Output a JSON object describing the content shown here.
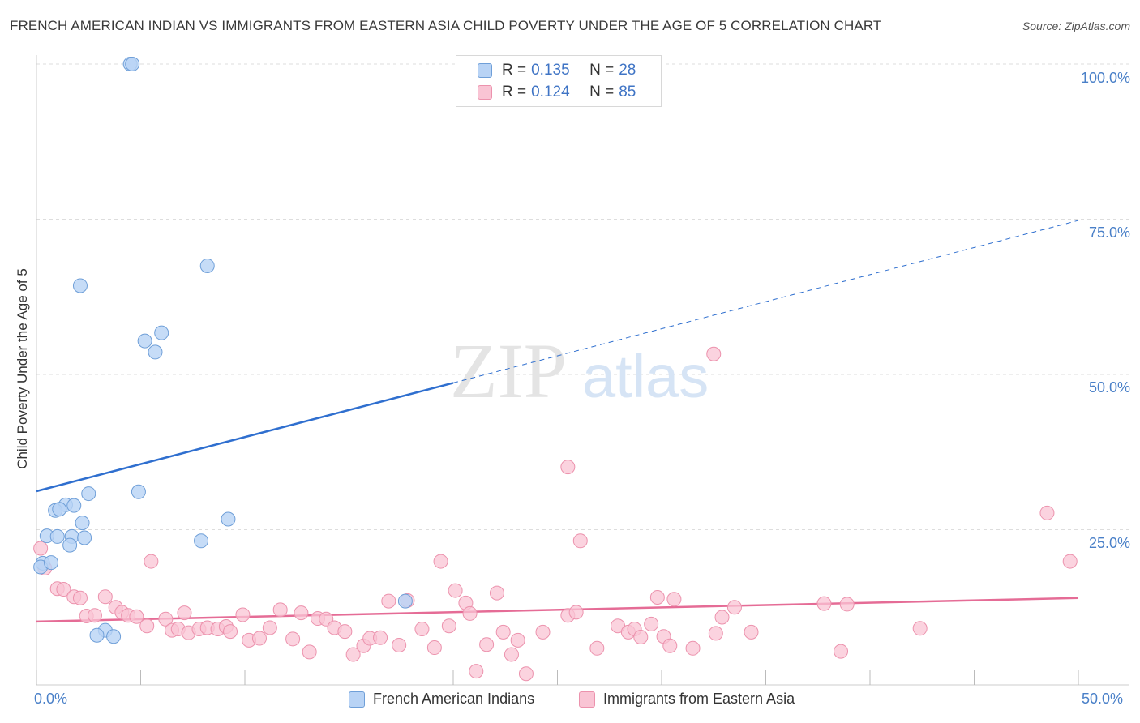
{
  "title": "FRENCH AMERICAN INDIAN VS IMMIGRANTS FROM EASTERN ASIA CHILD POVERTY UNDER THE AGE OF 5 CORRELATION CHART",
  "source": "Source: ZipAtlas.com",
  "watermark": {
    "zip": "ZIP",
    "atlas": "atlas"
  },
  "legend": [
    {
      "r_label": "R =",
      "r_value": "0.135",
      "n_label": "N =",
      "n_value": "28"
    },
    {
      "r_label": "R =",
      "r_value": "0.124",
      "n_label": "N =",
      "n_value": "85"
    }
  ],
  "colors": {
    "series1_fill": "#b8d3f5",
    "series1_stroke": "#6f9fd8",
    "series1_line": "#2f6fcf",
    "series2_fill": "#f9c4d4",
    "series2_stroke": "#ec92ad",
    "series2_line": "#e56c96",
    "tick_text": "#4a80c8",
    "grid": "#dddddd"
  },
  "chart_data": {
    "type": "scatter",
    "title": "FRENCH AMERICAN INDIAN VS IMMIGRANTS FROM EASTERN ASIA CHILD POVERTY UNDER THE AGE OF 5 CORRELATION CHART",
    "xlabel": "",
    "ylabel": "Child Poverty Under the Age of 5",
    "xlim": [
      0,
      50
    ],
    "ylim": [
      0,
      100
    ],
    "x_tick_labels": [
      "0.0%",
      "50.0%"
    ],
    "y_tick_values": [
      25,
      50,
      75,
      100
    ],
    "y_tick_labels": [
      "25.0%",
      "50.0%",
      "75.0%",
      "100.0%"
    ],
    "series": [
      {
        "name": "French American Indians",
        "points": [
          [
            4.5,
            100
          ],
          [
            4.6,
            100
          ],
          [
            8.2,
            67.5
          ],
          [
            2.1,
            64.3
          ],
          [
            6.0,
            56.7
          ],
          [
            5.2,
            55.4
          ],
          [
            5.7,
            53.6
          ],
          [
            2.5,
            30.8
          ],
          [
            4.9,
            31.1
          ],
          [
            1.4,
            29.0
          ],
          [
            1.8,
            28.9
          ],
          [
            0.9,
            28.1
          ],
          [
            1.1,
            28.3
          ],
          [
            9.2,
            26.7
          ],
          [
            2.2,
            26.1
          ],
          [
            0.5,
            24.0
          ],
          [
            1.0,
            23.9
          ],
          [
            1.7,
            23.9
          ],
          [
            2.3,
            23.7
          ],
          [
            1.6,
            22.5
          ],
          [
            7.9,
            23.2
          ],
          [
            0.3,
            19.6
          ],
          [
            0.2,
            19.0
          ],
          [
            0.7,
            19.7
          ],
          [
            3.3,
            8.8
          ],
          [
            2.9,
            8.0
          ],
          [
            3.7,
            7.8
          ],
          [
            17.7,
            13.5
          ]
        ],
        "trend": {
          "x": [
            0,
            50
          ],
          "y": [
            31.2,
            74.8
          ],
          "solid_until_x": 20
        }
      },
      {
        "name": "Immigrants from Eastern Asia",
        "points": [
          [
            0.2,
            22.0
          ],
          [
            0.4,
            18.8
          ],
          [
            1.0,
            15.5
          ],
          [
            1.3,
            15.4
          ],
          [
            1.8,
            14.2
          ],
          [
            2.1,
            14.0
          ],
          [
            2.4,
            11.1
          ],
          [
            2.8,
            11.2
          ],
          [
            3.3,
            14.2
          ],
          [
            3.8,
            12.5
          ],
          [
            4.1,
            11.7
          ],
          [
            4.4,
            11.2
          ],
          [
            4.8,
            11.0
          ],
          [
            5.3,
            9.5
          ],
          [
            5.5,
            19.9
          ],
          [
            6.2,
            10.6
          ],
          [
            6.5,
            8.8
          ],
          [
            6.8,
            9.0
          ],
          [
            7.1,
            11.6
          ],
          [
            7.3,
            8.4
          ],
          [
            7.8,
            9.0
          ],
          [
            8.2,
            9.2
          ],
          [
            8.7,
            9.0
          ],
          [
            9.1,
            9.4
          ],
          [
            9.3,
            8.6
          ],
          [
            9.9,
            11.3
          ],
          [
            10.2,
            7.2
          ],
          [
            10.7,
            7.5
          ],
          [
            11.2,
            9.2
          ],
          [
            11.7,
            12.1
          ],
          [
            12.3,
            7.4
          ],
          [
            12.7,
            11.6
          ],
          [
            13.1,
            5.3
          ],
          [
            13.5,
            10.7
          ],
          [
            13.9,
            10.6
          ],
          [
            14.3,
            9.2
          ],
          [
            14.8,
            8.6
          ],
          [
            15.2,
            4.9
          ],
          [
            15.7,
            6.3
          ],
          [
            16.0,
            7.5
          ],
          [
            16.5,
            7.6
          ],
          [
            16.9,
            13.5
          ],
          [
            17.4,
            6.4
          ],
          [
            17.8,
            13.6
          ],
          [
            18.5,
            9.0
          ],
          [
            19.1,
            6.0
          ],
          [
            19.4,
            19.9
          ],
          [
            19.8,
            9.5
          ],
          [
            20.1,
            15.2
          ],
          [
            20.6,
            13.2
          ],
          [
            20.8,
            11.5
          ],
          [
            21.1,
            2.2
          ],
          [
            21.6,
            6.5
          ],
          [
            22.1,
            14.8
          ],
          [
            22.4,
            8.5
          ],
          [
            22.8,
            4.9
          ],
          [
            23.1,
            7.2
          ],
          [
            23.5,
            1.8
          ],
          [
            24.3,
            8.5
          ],
          [
            25.5,
            11.2
          ],
          [
            25.9,
            11.7
          ],
          [
            26.1,
            23.2
          ],
          [
            25.5,
            35.1
          ],
          [
            26.9,
            5.9
          ],
          [
            27.9,
            9.5
          ],
          [
            28.4,
            8.5
          ],
          [
            28.7,
            9.0
          ],
          [
            29.0,
            7.7
          ],
          [
            29.5,
            9.8
          ],
          [
            29.8,
            14.1
          ],
          [
            30.1,
            7.8
          ],
          [
            30.4,
            6.3
          ],
          [
            30.6,
            13.8
          ],
          [
            31.5,
            5.9
          ],
          [
            32.5,
            53.3
          ],
          [
            32.6,
            8.3
          ],
          [
            32.9,
            10.9
          ],
          [
            33.5,
            12.5
          ],
          [
            37.8,
            13.1
          ],
          [
            38.6,
            5.4
          ],
          [
            38.9,
            13.0
          ],
          [
            42.4,
            9.1
          ],
          [
            48.5,
            27.7
          ],
          [
            49.6,
            19.9
          ],
          [
            34.3,
            8.5
          ]
        ],
        "trend": {
          "x": [
            0,
            50
          ],
          "y": [
            10.2,
            14.0
          ]
        }
      }
    ]
  }
}
